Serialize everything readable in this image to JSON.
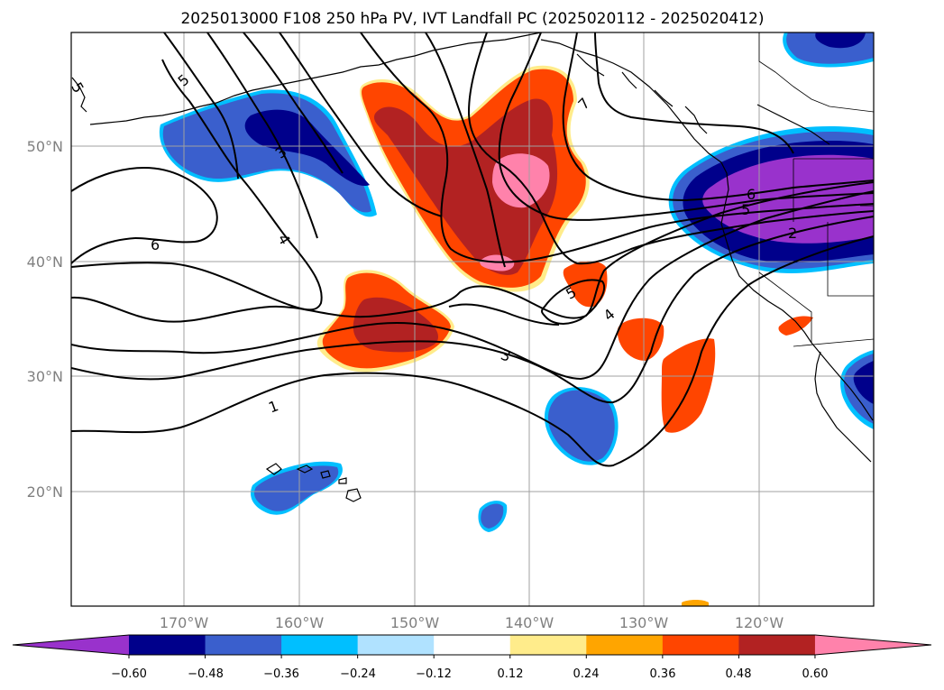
{
  "title": "2025013000 F108 250 hPa PV, IVT Landfall PC (2025020112 - 2025020412)",
  "lat_labels": [
    "50°N",
    "40°N",
    "30°N",
    "20°N"
  ],
  "lon_labels": [
    "170°W",
    "160°W",
    "150°W",
    "140°W",
    "130°W",
    "120°W"
  ],
  "colorbar": {
    "colors": [
      "#9932cc",
      "#00008b",
      "#3a5fcd",
      "#00bfff",
      "#b0e2ff",
      "#ffffff",
      "#ffec8b",
      "#ffa500",
      "#ff4500",
      "#b22222",
      "#ff82ab"
    ],
    "tick_labels": [
      "−0.60",
      "−0.48",
      "−0.36",
      "−0.24",
      "−0.12",
      "0.12",
      "0.24",
      "0.36",
      "0.48",
      "0.60"
    ]
  },
  "contour_labels": [
    "5",
    "5",
    "3",
    "4",
    "6",
    "6",
    "5",
    "2",
    "7",
    "5",
    "4",
    "3",
    "1"
  ],
  "colors": {
    "coast": "#000000",
    "grid": "#a0a0a0",
    "contour": "#000000"
  }
}
